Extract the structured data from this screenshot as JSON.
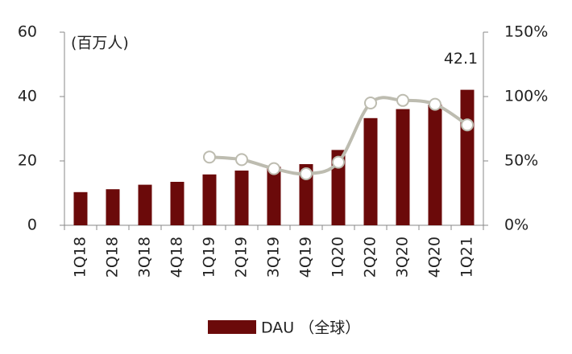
{
  "chart_data": {
    "type": "bar",
    "annotation": "(百万人)",
    "categories": [
      "1Q18",
      "2Q18",
      "3Q18",
      "4Q18",
      "1Q19",
      "2Q19",
      "3Q19",
      "4Q19",
      "1Q20",
      "2Q20",
      "3Q20",
      "4Q20",
      "1Q21"
    ],
    "series": [
      {
        "name": "DAU （全球）",
        "type": "bar",
        "color": "#6b0a0a",
        "values": [
          10.3,
          11.2,
          12.6,
          13.5,
          15.8,
          17.0,
          18.2,
          19.0,
          23.4,
          33.3,
          36.1,
          37.5,
          42.1
        ]
      },
      {
        "type": "line",
        "axis": "y2",
        "color": "#bdbcb0",
        "values": [
          null,
          null,
          null,
          null,
          53,
          51,
          44,
          40,
          49,
          95,
          97,
          94,
          78
        ]
      }
    ],
    "data_label_index": 12,
    "ylim": [
      0,
      60
    ],
    "yticks": [
      0,
      20,
      40,
      60
    ],
    "y2lim": [
      0,
      150
    ],
    "y2ticks": [
      {
        "value": 0,
        "label": "0%"
      },
      {
        "value": 50,
        "label": "50%"
      },
      {
        "value": 100,
        "label": "100%"
      },
      {
        "value": 150,
        "label": "150%"
      }
    ],
    "legend": "bottom"
  }
}
